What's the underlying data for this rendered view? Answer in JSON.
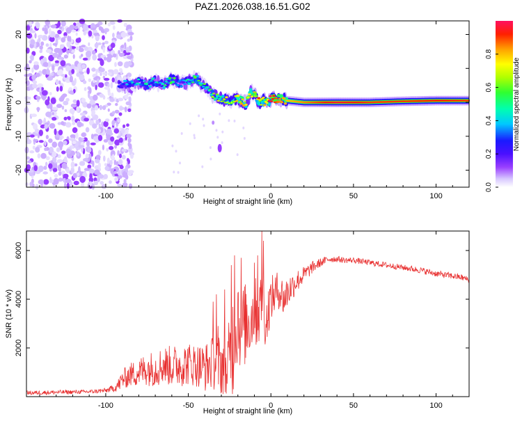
{
  "title": "PAZ1.2026.038.16.51.G02",
  "colors": {
    "snr_line": "#e83030",
    "colorbar": [
      "#ffffff",
      "#d8c8ff",
      "#9a40ff",
      "#4a10ff",
      "#1a1aff",
      "#00c8ff",
      "#00ffb0",
      "#30ff30",
      "#b0ff00",
      "#ffff00",
      "#ffa000",
      "#ff2000",
      "#ff1060"
    ]
  },
  "chart_data": [
    {
      "type": "heatmap",
      "xlabel": "Height of straight line (km)",
      "ylabel": "Frequency (Hz)",
      "xlim": [
        -148,
        120
      ],
      "ylim": [
        -25,
        24
      ],
      "xticks": [
        -100,
        -50,
        0,
        50,
        100
      ],
      "xtick_labels": [
        "-100",
        "-50",
        "0",
        "50",
        "100"
      ],
      "yticks": [
        -20,
        -10,
        0,
        10,
        20
      ],
      "ytick_labels": [
        "-20",
        "-10",
        "0",
        "10",
        "20"
      ],
      "colorbar": {
        "label": "Normalized spectral amplitude",
        "range": [
          0,
          1
        ],
        "ticks": [
          0.0,
          0.2,
          0.4,
          0.6,
          0.8
        ],
        "tick_labels": [
          "0.0",
          "0.2",
          "0.4",
          "0.6",
          "0.8"
        ]
      },
      "ridge": {
        "x": [
          -92,
          -85,
          -80,
          -75,
          -70,
          -65,
          -60,
          -55,
          -50,
          -45,
          -40,
          -35,
          -30,
          -25,
          -20,
          -15,
          -12,
          -10,
          -7,
          -5,
          -2,
          0,
          5,
          10,
          20,
          40,
          60,
          80,
          100,
          120
        ],
        "freq": [
          5,
          5.5,
          6,
          5,
          6.5,
          5,
          7,
          5.5,
          6,
          7,
          4.5,
          2.5,
          1,
          0.5,
          1,
          -0.5,
          3,
          2,
          0,
          0.5,
          -0.5,
          1,
          1,
          0.5,
          0,
          0,
          0,
          0.3,
          0.5,
          0.5
        ],
        "amplitude": [
          0.3,
          0.4,
          0.4,
          0.45,
          0.45,
          0.45,
          0.5,
          0.45,
          0.5,
          0.5,
          0.5,
          0.55,
          0.6,
          0.6,
          0.65,
          0.7,
          0.6,
          0.75,
          0.8,
          0.7,
          0.8,
          0.95,
          0.85,
          0.8,
          0.85,
          0.95,
          0.9,
          0.9,
          0.92,
          0.9
        ]
      },
      "noise_region_x": [
        -148,
        -88
      ]
    },
    {
      "type": "line",
      "xlabel": "Height of straight line (km)",
      "ylabel": "SNR (10 * v/v)",
      "xlim": [
        -148,
        120
      ],
      "ylim": [
        0,
        6800
      ],
      "xticks": [
        -100,
        -50,
        0,
        50,
        100
      ],
      "xtick_labels": [
        "-100",
        "-50",
        "0",
        "50",
        "100"
      ],
      "yticks": [
        2000,
        4000,
        6000
      ],
      "ytick_labels": [
        "2000",
        "4000",
        "6000"
      ],
      "series": [
        {
          "name": "SNR",
          "x": [
            -148,
            -130,
            -110,
            -100,
            -95,
            -92,
            -90,
            -85,
            -80,
            -75,
            -70,
            -65,
            -60,
            -55,
            -50,
            -45,
            -40,
            -35,
            -30,
            -27,
            -25,
            -22,
            -20,
            -18,
            -15,
            -12,
            -10,
            -8,
            -6,
            -5,
            -3,
            -1,
            0,
            2,
            5,
            8,
            10,
            15,
            20,
            25,
            30,
            35,
            40,
            45,
            50,
            60,
            70,
            80,
            90,
            100,
            110,
            115,
            120
          ],
          "values": [
            150,
            180,
            200,
            250,
            350,
            500,
            700,
            900,
            1000,
            1150,
            1150,
            1300,
            1250,
            1300,
            1350,
            1300,
            1200,
            1400,
            1300,
            1300,
            1500,
            2500,
            3500,
            2800,
            3000,
            3200,
            3600,
            3300,
            3800,
            4200,
            2900,
            3800,
            4000,
            4200,
            4400,
            4000,
            4300,
            4700,
            5000,
            5300,
            5500,
            5650,
            5650,
            5600,
            5600,
            5500,
            5400,
            5300,
            5200,
            5050,
            4950,
            4900,
            4800
          ],
          "spread": [
            90,
            90,
            80,
            100,
            150,
            300,
            400,
            500,
            600,
            700,
            750,
            800,
            850,
            900,
            900,
            900,
            1000,
            1100,
            1300,
            1400,
            1700,
            2500,
            2000,
            1900,
            1700,
            1500,
            1400,
            1500,
            1300,
            1200,
            1100,
            1000,
            900,
            900,
            800,
            800,
            700,
            500,
            350,
            250,
            180,
            150,
            130,
            120,
            120,
            120,
            120,
            120,
            130,
            130,
            130,
            130,
            130
          ],
          "spikes": [
            {
              "x": -35,
              "y": 3900
            },
            {
              "x": -33,
              "y": 4200
            },
            {
              "x": -32,
              "y": 2900
            },
            {
              "x": -28,
              "y": 4400
            },
            {
              "x": -24,
              "y": 5400
            },
            {
              "x": -22,
              "y": 5800
            },
            {
              "x": -18,
              "y": 5700
            },
            {
              "x": -10,
              "y": 5500
            },
            {
              "x": -8,
              "y": 5800
            },
            {
              "x": -5.5,
              "y": 6800
            },
            {
              "x": -4.5,
              "y": 6400
            }
          ]
        }
      ]
    }
  ]
}
